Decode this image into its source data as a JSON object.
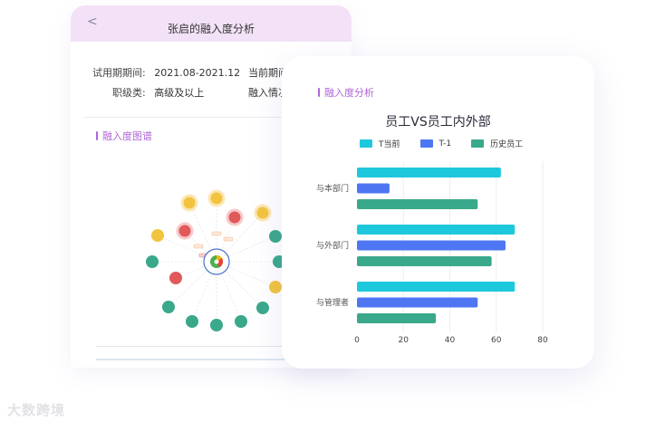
{
  "back_panel": {
    "back_icon": "chevron-left-icon",
    "title": "张启的融入度分析",
    "info": {
      "trial_label": "试用期期间:",
      "trial_value": "2021.08-2021.12",
      "current_label": "当前期间",
      "level_label": "职级类:",
      "level_value": "高级及以上",
      "integration_label": "融入情况"
    },
    "section_title": "融入度图谱"
  },
  "front_card": {
    "section_title": "融入度分析",
    "legend": [
      {
        "name": "T当前",
        "color": "#1ec8dc"
      },
      {
        "name": "T-1",
        "color": "#4f76f2"
      },
      {
        "name": "历史员工",
        "color": "#3aa88a"
      }
    ]
  },
  "chart_data": {
    "type": "bar",
    "orientation": "horizontal",
    "title": "员工VS员工内外部",
    "categories": [
      "与本部门",
      "与外部门",
      "与管理者"
    ],
    "series": [
      {
        "name": "T当前",
        "values": [
          62,
          68,
          68
        ]
      },
      {
        "name": "T-1",
        "values": [
          14,
          64,
          52
        ]
      },
      {
        "name": "历史员工",
        "values": [
          52,
          58,
          34
        ]
      }
    ],
    "xlim": [
      0,
      80
    ],
    "xticks": [
      0,
      20,
      40,
      60,
      80
    ],
    "colors": [
      "#1ec8dc",
      "#4f76f2",
      "#3aa88a"
    ],
    "grid": true
  },
  "watermark": "大数跨境"
}
